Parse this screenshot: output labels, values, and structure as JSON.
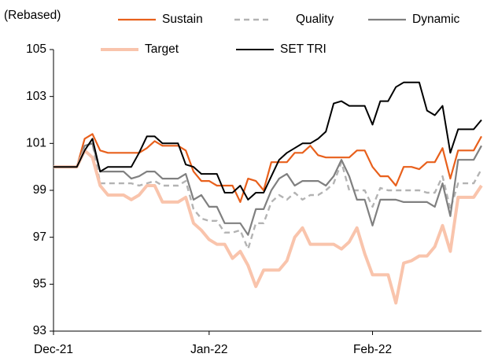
{
  "chart_data": {
    "type": "line",
    "ylabel": "(Rebased)",
    "categories": [
      "Dec-21",
      null,
      null,
      null,
      null,
      null,
      null,
      null,
      null,
      null,
      null,
      null,
      null,
      null,
      null,
      null,
      null,
      null,
      null,
      null,
      "Jan-22",
      null,
      null,
      null,
      null,
      null,
      null,
      null,
      null,
      null,
      null,
      null,
      null,
      null,
      null,
      null,
      null,
      null,
      null,
      null,
      null,
      "Feb-22",
      null,
      null,
      null,
      null,
      null,
      null,
      null,
      null,
      null,
      null,
      null,
      null,
      null,
      null
    ],
    "ylim": [
      93,
      105
    ],
    "yticks": [
      93,
      95,
      97,
      99,
      101,
      103,
      105
    ],
    "series": [
      {
        "name": "Sustain",
        "color": "#e8601c",
        "width": 2.2,
        "dashed": false,
        "values": [
          100,
          100,
          100,
          100,
          101.2,
          101.4,
          100.7,
          100.6,
          100.6,
          100.6,
          100.6,
          100.6,
          100.8,
          101.1,
          100.9,
          100.9,
          100.9,
          100.7,
          99.8,
          99.4,
          99.4,
          99.2,
          99.2,
          99.2,
          98.5,
          99.5,
          99.4,
          99,
          100.2,
          100.2,
          100.2,
          100.6,
          100.6,
          100.9,
          100.5,
          100.4,
          100.4,
          100.4,
          100.4,
          100.7,
          100.7,
          100,
          99.6,
          99.6,
          99.2,
          100,
          100,
          99.9,
          100.2,
          100.2,
          100.8,
          99.5,
          100.7,
          100.7,
          100.7,
          101.3
        ]
      },
      {
        "name": "Quality",
        "color": "#b3b3b3",
        "width": 2.4,
        "dashed": true,
        "values": [
          100,
          100,
          100,
          100,
          100.9,
          101,
          99.3,
          99.3,
          99.3,
          99.3,
          99.3,
          99.2,
          99.3,
          99.4,
          99.2,
          99.2,
          99.2,
          99.4,
          98.2,
          97.8,
          97.7,
          97.7,
          97.2,
          97.2,
          97.3,
          96.5,
          97.6,
          97.6,
          98.5,
          98.8,
          98.6,
          98.9,
          98.6,
          98.8,
          98.8,
          99,
          99.3,
          100.2,
          99,
          99,
          99,
          98.3,
          99.1,
          99,
          99,
          99,
          99,
          99,
          98.9,
          98.9,
          99.6,
          98.2,
          99.3,
          99.3,
          99.3,
          99.9
        ]
      },
      {
        "name": "Dynamic",
        "color": "#808080",
        "width": 2.2,
        "dashed": false,
        "values": [
          100,
          100,
          100,
          100,
          100.9,
          101,
          99.8,
          99.8,
          99.8,
          99.8,
          99.5,
          99.6,
          99.8,
          99.8,
          99.5,
          99.5,
          99.5,
          99.7,
          98.6,
          98.8,
          98.3,
          98.3,
          97.6,
          97.6,
          97.6,
          97.1,
          98.2,
          98.2,
          99,
          99.5,
          99.7,
          99.2,
          99.4,
          99.4,
          99.4,
          99.2,
          99.6,
          100.3,
          99.6,
          98.6,
          98.6,
          97.5,
          98.6,
          98.6,
          98.6,
          98.5,
          98.5,
          98.5,
          98.5,
          98.3,
          99.3,
          97.9,
          100.3,
          100.3,
          100.3,
          100.9
        ]
      },
      {
        "name": "Target",
        "color": "#f9c4ac",
        "width": 4,
        "dashed": false,
        "values": [
          100,
          100,
          100,
          100,
          100.7,
          100.4,
          99.2,
          98.8,
          98.8,
          98.8,
          98.6,
          98.8,
          99.2,
          99.2,
          98.5,
          98.5,
          98.5,
          98.7,
          97.6,
          97.3,
          96.9,
          96.7,
          96.7,
          96.1,
          96.4,
          95.8,
          94.9,
          95.6,
          95.6,
          95.6,
          96,
          97,
          97.4,
          96.7,
          96.7,
          96.7,
          96.7,
          96.5,
          96.8,
          97.4,
          96.3,
          95.4,
          95.4,
          95.4,
          94.2,
          95.9,
          96,
          96.2,
          96.2,
          96.6,
          97.5,
          96.4,
          98.7,
          98.7,
          98.7,
          99.2
        ]
      },
      {
        "name": "SET TRI",
        "color": "#000000",
        "width": 2,
        "dashed": false,
        "values": [
          100,
          100,
          100,
          100,
          100.7,
          101.2,
          99.8,
          100,
          100,
          100,
          100,
          100.6,
          101.3,
          101.3,
          101,
          101,
          101,
          100.1,
          100,
          99.7,
          99.7,
          99.7,
          98.9,
          98.9,
          99.2,
          98.6,
          98.9,
          98.9,
          99.6,
          100.3,
          100.6,
          100.8,
          101,
          101,
          101.2,
          101.5,
          102.7,
          102.8,
          102.6,
          102.6,
          102.6,
          101.8,
          102.8,
          102.8,
          103.4,
          103.6,
          103.6,
          103.6,
          102.4,
          102.2,
          102.6,
          100.6,
          101.6,
          101.6,
          101.6,
          102
        ]
      }
    ]
  }
}
